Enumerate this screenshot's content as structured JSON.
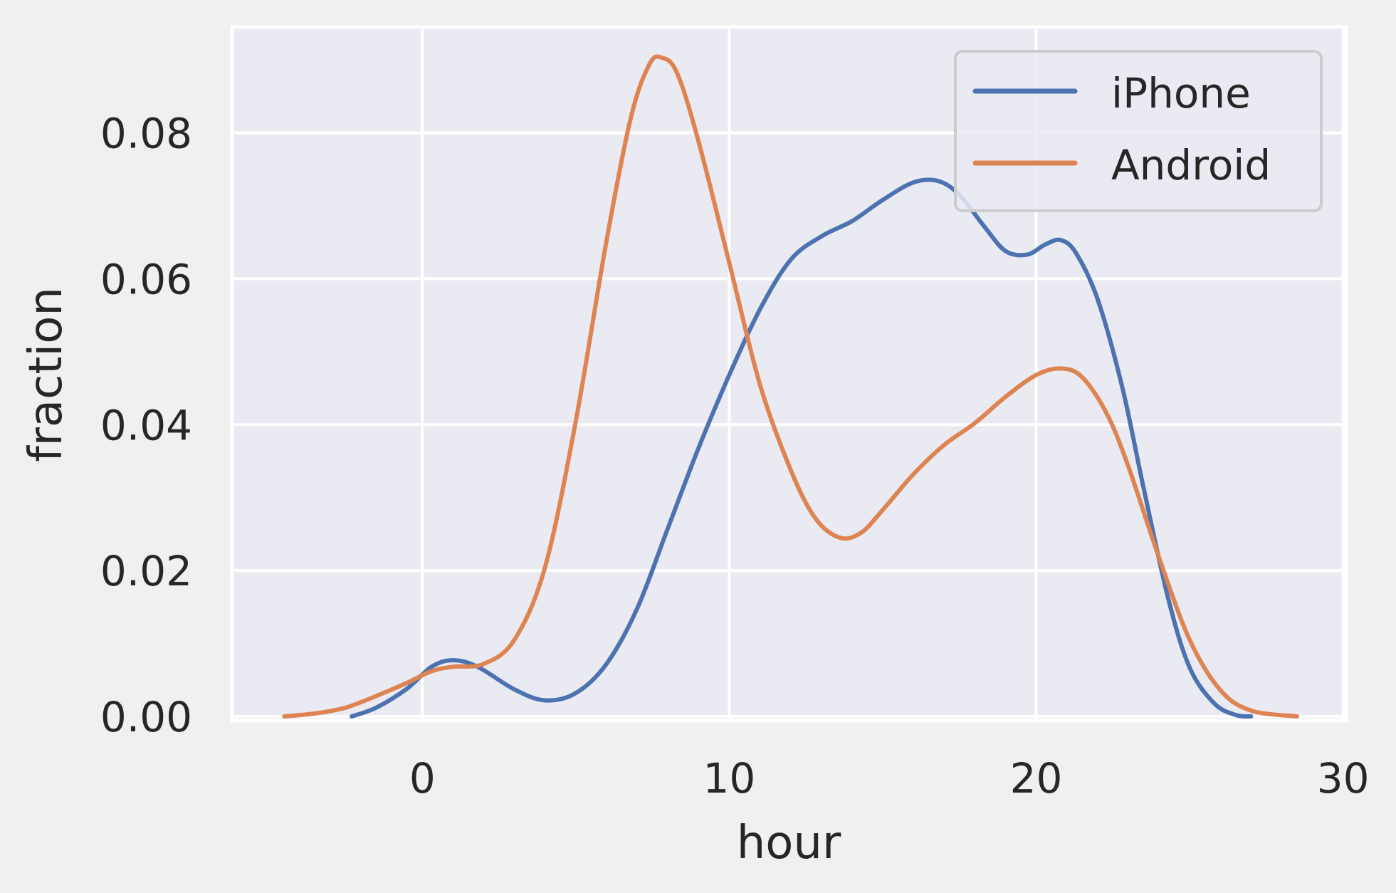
{
  "chart_data": {
    "type": "line",
    "title": "",
    "xlabel": "hour",
    "ylabel": "fraction",
    "xlim": [
      -6.2,
      30.1
    ],
    "ylim": [
      0,
      0.0945
    ],
    "x_ticks": [
      0,
      10,
      20,
      30
    ],
    "x_tick_labels": [
      "0",
      "10",
      "20",
      "30"
    ],
    "y_ticks": [
      0.0,
      0.02,
      0.04,
      0.06,
      0.08
    ],
    "y_tick_labels": [
      "0.00",
      "0.02",
      "0.04",
      "0.06",
      "0.08"
    ],
    "grid": true,
    "legend_position": "top-right",
    "colors": {
      "background": "#eaeaf2",
      "grid": "#ffffff",
      "page": "#f0f0f0"
    },
    "series": [
      {
        "name": "iPhone",
        "color": "#4c72b0",
        "points": [
          [
            -2.3,
            0.0
          ],
          [
            -1.5,
            0.0012
          ],
          [
            -0.5,
            0.0038
          ],
          [
            0.3,
            0.0068
          ],
          [
            1.0,
            0.0077
          ],
          [
            1.8,
            0.0068
          ],
          [
            3.0,
            0.0037
          ],
          [
            4.0,
            0.0022
          ],
          [
            5.0,
            0.0032
          ],
          [
            6.0,
            0.0072
          ],
          [
            7.0,
            0.0148
          ],
          [
            8.0,
            0.0258
          ],
          [
            9.0,
            0.0368
          ],
          [
            10.0,
            0.0468
          ],
          [
            11.0,
            0.0558
          ],
          [
            12.0,
            0.0626
          ],
          [
            13.0,
            0.0658
          ],
          [
            14.0,
            0.0679
          ],
          [
            15.0,
            0.0708
          ],
          [
            16.0,
            0.0732
          ],
          [
            16.8,
            0.0734
          ],
          [
            17.5,
            0.0715
          ],
          [
            18.3,
            0.0672
          ],
          [
            19.0,
            0.0638
          ],
          [
            19.7,
            0.0633
          ],
          [
            20.3,
            0.0647
          ],
          [
            20.8,
            0.0653
          ],
          [
            21.3,
            0.0635
          ],
          [
            22.0,
            0.0572
          ],
          [
            22.8,
            0.0452
          ],
          [
            23.5,
            0.0313
          ],
          [
            24.3,
            0.0162
          ],
          [
            25.0,
            0.0067
          ],
          [
            25.8,
            0.0018
          ],
          [
            26.5,
            0.0002
          ],
          [
            27.0,
            0.0
          ]
        ]
      },
      {
        "name": "Android",
        "color": "#dd8452",
        "points": [
          [
            -4.5,
            0.0
          ],
          [
            -3.5,
            0.0004
          ],
          [
            -2.5,
            0.0012
          ],
          [
            -1.5,
            0.0028
          ],
          [
            -0.5,
            0.0046
          ],
          [
            0.3,
            0.0062
          ],
          [
            1.0,
            0.0068
          ],
          [
            2.0,
            0.0072
          ],
          [
            3.0,
            0.0105
          ],
          [
            4.0,
            0.0205
          ],
          [
            5.0,
            0.0405
          ],
          [
            6.0,
            0.0652
          ],
          [
            6.8,
            0.0822
          ],
          [
            7.4,
            0.0894
          ],
          [
            7.8,
            0.0903
          ],
          [
            8.3,
            0.0882
          ],
          [
            9.0,
            0.0788
          ],
          [
            10.0,
            0.0622
          ],
          [
            11.0,
            0.0455
          ],
          [
            12.0,
            0.0338
          ],
          [
            12.8,
            0.0272
          ],
          [
            13.6,
            0.0245
          ],
          [
            14.3,
            0.0252
          ],
          [
            15.0,
            0.0283
          ],
          [
            16.0,
            0.0332
          ],
          [
            17.0,
            0.0372
          ],
          [
            18.0,
            0.0402
          ],
          [
            19.0,
            0.0438
          ],
          [
            20.0,
            0.0468
          ],
          [
            20.8,
            0.0477
          ],
          [
            21.5,
            0.0465
          ],
          [
            22.3,
            0.0415
          ],
          [
            23.0,
            0.0343
          ],
          [
            24.0,
            0.0218
          ],
          [
            25.0,
            0.0105
          ],
          [
            26.0,
            0.0036
          ],
          [
            27.0,
            0.0008
          ],
          [
            28.5,
            0.0
          ]
        ]
      }
    ]
  }
}
